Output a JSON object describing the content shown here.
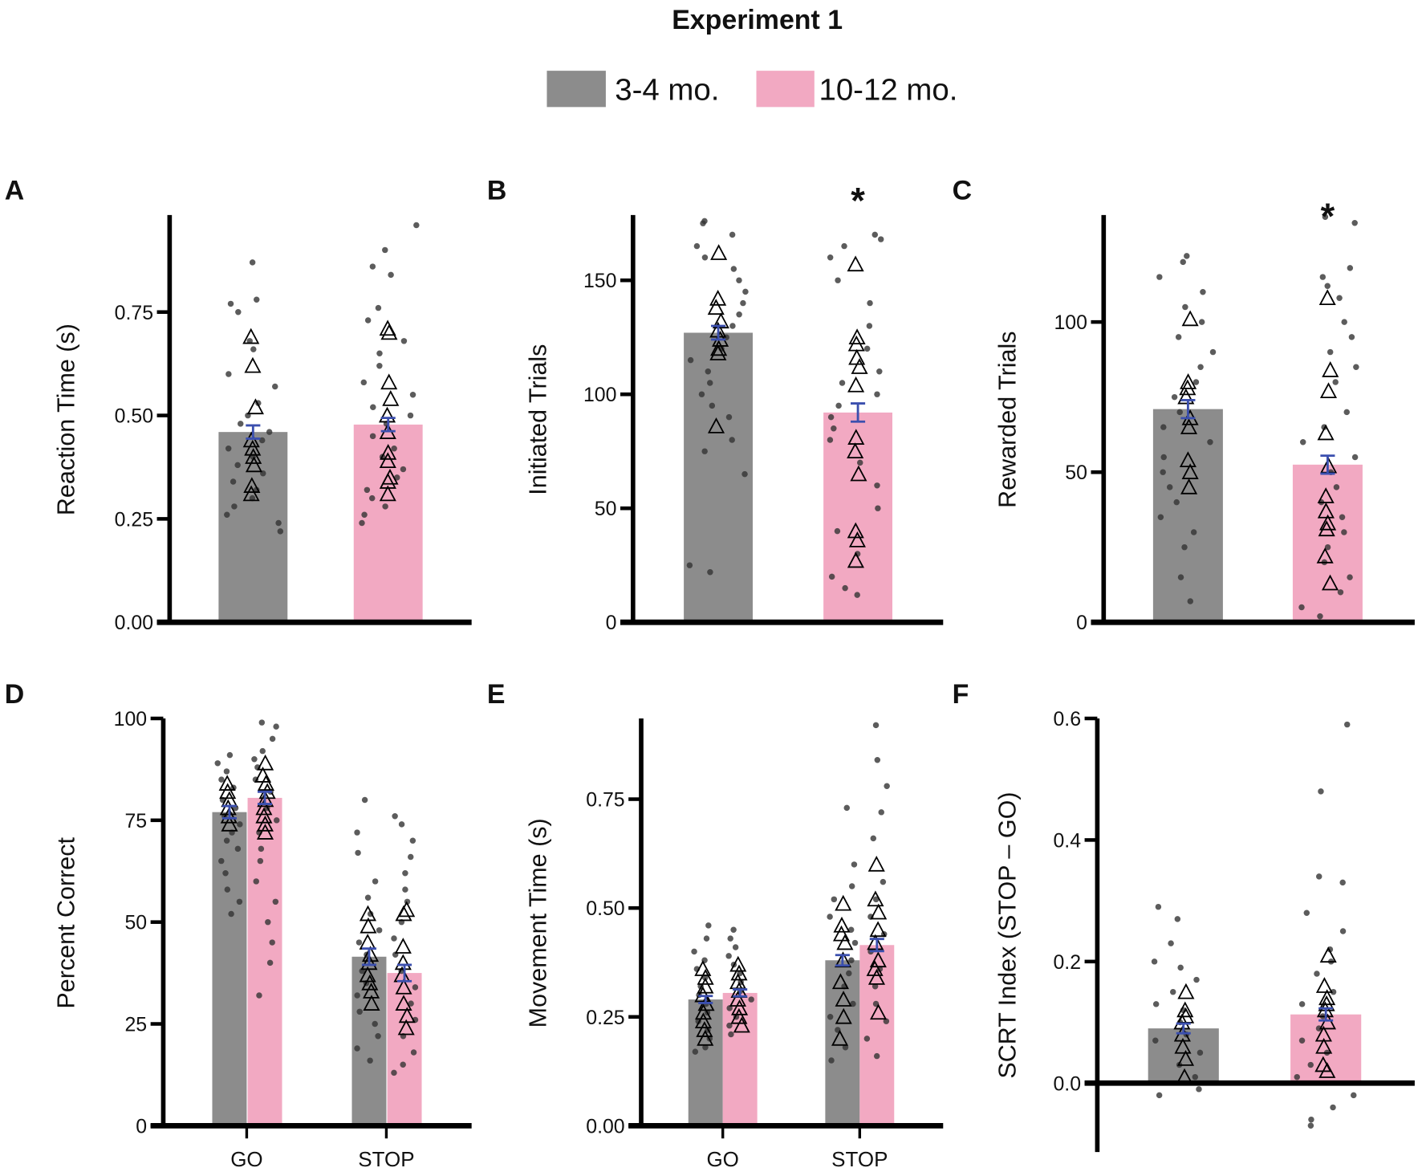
{
  "title": "Experiment 1",
  "legend": [
    {
      "label": "3-4 mo.",
      "color": "#8c8c8c"
    },
    {
      "label": "10-12 mo.",
      "color": "#f2a9c2"
    }
  ],
  "colors": {
    "dot": "#333333",
    "sem": "#3b4fae",
    "axis": "#000000"
  },
  "chart_data": [
    {
      "panel": "A",
      "type": "bar",
      "ylabel": "Reaction Time (s)",
      "ylim": [
        0,
        0.98
      ],
      "yticks": [
        "0.00",
        "0.25",
        "0.50",
        "0.75"
      ],
      "ytick_values": [
        0,
        0.25,
        0.5,
        0.75
      ],
      "categories": [
        ""
      ],
      "significance": [],
      "series": [
        {
          "name": "3-4 mo.",
          "groups": [
            {
              "mean": 0.46,
              "sem": 0.016,
              "points": [
                0.87,
                0.78,
                0.77,
                0.75,
                0.68,
                0.66,
                0.6,
                0.57,
                0.53,
                0.5,
                0.48,
                0.46,
                0.44,
                0.42,
                0.4,
                0.38,
                0.36,
                0.34,
                0.32,
                0.3,
                0.28,
                0.26,
                0.24,
                0.22
              ],
              "subjects": [
                0.69,
                0.62,
                0.52,
                0.44,
                0.42,
                0.4,
                0.38,
                0.33,
                0.31
              ]
            }
          ]
        },
        {
          "name": "10-12 mo.",
          "groups": [
            {
              "mean": 0.478,
              "sem": 0.016,
              "points": [
                0.96,
                0.9,
                0.86,
                0.84,
                0.76,
                0.73,
                0.68,
                0.65,
                0.62,
                0.58,
                0.55,
                0.52,
                0.5,
                0.48,
                0.45,
                0.42,
                0.4,
                0.37,
                0.35,
                0.32,
                0.3,
                0.28,
                0.26,
                0.24
              ],
              "subjects": [
                0.71,
                0.7,
                0.58,
                0.54,
                0.5,
                0.46,
                0.41,
                0.39,
                0.35,
                0.34,
                0.31
              ]
            }
          ]
        }
      ]
    },
    {
      "panel": "B",
      "type": "bar",
      "ylabel": "Initiated Trials",
      "ylim": [
        0,
        180
      ],
      "yticks": [
        "0",
        "50",
        "100",
        "150"
      ],
      "ytick_values": [
        0,
        50,
        100,
        150
      ],
      "categories": [
        ""
      ],
      "significance": [
        "",
        "*"
      ],
      "series": [
        {
          "name": "3-4 mo.",
          "groups": [
            {
              "mean": 127,
              "sem": 3,
              "points": [
                176,
                175,
                170,
                165,
                160,
                155,
                150,
                145,
                140,
                135,
                130,
                125,
                120,
                115,
                110,
                105,
                100,
                95,
                90,
                80,
                75,
                65,
                25,
                22
              ],
              "subjects": [
                162,
                142,
                138,
                132,
                128,
                124,
                120,
                118,
                86
              ]
            }
          ]
        },
        {
          "name": "10-12 mo.",
          "groups": [
            {
              "mean": 92,
              "sem": 4,
              "points": [
                170,
                168,
                165,
                160,
                150,
                140,
                130,
                120,
                110,
                105,
                100,
                95,
                90,
                85,
                80,
                70,
                60,
                50,
                40,
                30,
                20,
                15,
                12
              ],
              "subjects": [
                157,
                125,
                122,
                116,
                112,
                104,
                81,
                75,
                65,
                40,
                36,
                27
              ]
            }
          ]
        }
      ]
    },
    {
      "panel": "C",
      "type": "bar",
      "ylabel": "Rewarded Trials",
      "ylim": [
        0,
        136
      ],
      "yticks": [
        "0",
        "50",
        "100"
      ],
      "ytick_values": [
        0,
        50,
        100
      ],
      "categories": [
        ""
      ],
      "significance": [
        "",
        "*"
      ],
      "series": [
        {
          "name": "3-4 mo.",
          "groups": [
            {
              "mean": 71,
              "sem": 3,
              "points": [
                122,
                120,
                115,
                110,
                105,
                100,
                95,
                90,
                85,
                80,
                75,
                70,
                65,
                60,
                55,
                50,
                45,
                40,
                35,
                30,
                25,
                15,
                7
              ],
              "subjects": [
                101,
                80,
                78,
                75,
                68,
                65,
                54,
                50,
                45
              ]
            }
          ]
        },
        {
          "name": "10-12 mo.",
          "groups": [
            {
              "mean": 52.5,
              "sem": 3,
              "points": [
                135,
                133,
                118,
                115,
                112,
                108,
                100,
                95,
                90,
                85,
                80,
                70,
                65,
                60,
                55,
                50,
                45,
                40,
                35,
                30,
                25,
                20,
                15,
                10,
                5,
                2
              ],
              "subjects": [
                108,
                84,
                77,
                63,
                52,
                42,
                37,
                33,
                31,
                22,
                13
              ]
            }
          ]
        }
      ]
    },
    {
      "panel": "D",
      "type": "bar",
      "ylabel": "Percent Correct",
      "ylim": [
        0,
        100
      ],
      "yticks": [
        "0",
        "25",
        "50",
        "75",
        "100"
      ],
      "ytick_values": [
        0,
        25,
        50,
        75,
        100
      ],
      "categories": [
        "GO",
        "STOP"
      ],
      "significance": [],
      "series": [
        {
          "name": "3-4 mo.",
          "groups": [
            {
              "mean": 77,
              "sem": 1.5,
              "points": [
                91,
                89,
                87,
                85,
                83,
                80,
                78,
                76,
                74,
                72,
                70,
                68,
                65,
                62,
                58,
                55,
                52
              ],
              "subjects": [
                84,
                82,
                80,
                78,
                76,
                74
              ]
            },
            {
              "mean": 41.5,
              "sem": 2,
              "points": [
                80,
                72,
                67,
                60,
                56,
                52,
                48,
                45,
                42,
                38,
                35,
                32,
                28,
                25,
                22,
                19,
                16
              ],
              "subjects": [
                52,
                49,
                45,
                42,
                40,
                37,
                35,
                33,
                30
              ]
            }
          ]
        },
        {
          "name": "10-12 mo.",
          "groups": [
            {
              "mean": 80.5,
              "sem": 1.5,
              "points": [
                99,
                98,
                95,
                92,
                90,
                88,
                85,
                82,
                78,
                75,
                72,
                68,
                65,
                60,
                55,
                50,
                45,
                40,
                32
              ],
              "subjects": [
                89,
                86,
                84,
                82,
                80,
                78,
                76,
                74,
                72
              ]
            },
            {
              "mean": 37.5,
              "sem": 2,
              "points": [
                76,
                74,
                70,
                66,
                62,
                58,
                55,
                50,
                46,
                42,
                38,
                34,
                30,
                26,
                22,
                18,
                15,
                13
              ],
              "subjects": [
                53,
                52,
                44,
                40,
                37,
                34,
                30,
                27,
                24
              ]
            }
          ]
        }
      ]
    },
    {
      "panel": "E",
      "type": "bar",
      "ylabel": "Movement Time (s)",
      "ylim": [
        0,
        0.94
      ],
      "yticks": [
        "0.00",
        "0.25",
        "0.50",
        "0.75"
      ],
      "ytick_values": [
        0,
        0.25,
        0.5,
        0.75
      ],
      "categories": [
        "GO",
        "STOP"
      ],
      "significance": [],
      "series": [
        {
          "name": "3-4 mo.",
          "groups": [
            {
              "mean": 0.29,
              "sem": 0.008,
              "points": [
                0.46,
                0.43,
                0.4,
                0.38,
                0.36,
                0.34,
                0.32,
                0.3,
                0.28,
                0.26,
                0.24,
                0.22,
                0.2,
                0.18,
                0.17
              ],
              "subjects": [
                0.36,
                0.34,
                0.32,
                0.3,
                0.28,
                0.26,
                0.24,
                0.22,
                0.2
              ]
            },
            {
              "mean": 0.38,
              "sem": 0.012,
              "points": [
                0.73,
                0.6,
                0.55,
                0.52,
                0.48,
                0.45,
                0.42,
                0.38,
                0.35,
                0.32,
                0.28,
                0.25,
                0.22,
                0.18,
                0.15
              ],
              "subjects": [
                0.51,
                0.46,
                0.44,
                0.42,
                0.38,
                0.33,
                0.29,
                0.25,
                0.2
              ]
            }
          ]
        },
        {
          "name": "10-12 mo.",
          "groups": [
            {
              "mean": 0.305,
              "sem": 0.008,
              "points": [
                0.45,
                0.43,
                0.41,
                0.39,
                0.37,
                0.35,
                0.33,
                0.31,
                0.29,
                0.27,
                0.25,
                0.23,
                0.21
              ],
              "subjects": [
                0.37,
                0.35,
                0.33,
                0.31,
                0.29,
                0.27,
                0.25,
                0.23
              ]
            },
            {
              "mean": 0.415,
              "sem": 0.014,
              "points": [
                0.92,
                0.84,
                0.78,
                0.72,
                0.66,
                0.56,
                0.52,
                0.48,
                0.44,
                0.4,
                0.36,
                0.32,
                0.28,
                0.24,
                0.2,
                0.16
              ],
              "subjects": [
                0.6,
                0.52,
                0.49,
                0.45,
                0.42,
                0.38,
                0.36,
                0.34,
                0.26
              ]
            }
          ]
        }
      ]
    },
    {
      "panel": "F",
      "type": "bar",
      "ylabel": "SCRT Index (STOP – GO)",
      "ylim": [
        -0.11,
        0.6
      ],
      "yticks": [
        "0.0",
        "0.2",
        "0.4",
        "0.6"
      ],
      "ytick_values": [
        0,
        0.2,
        0.4,
        0.6
      ],
      "categories": [
        ""
      ],
      "significance": [],
      "series": [
        {
          "name": "3-4 mo.",
          "groups": [
            {
              "mean": 0.09,
              "sem": 0.008,
              "points": [
                0.29,
                0.27,
                0.23,
                0.2,
                0.19,
                0.17,
                0.15,
                0.13,
                0.12,
                0.1,
                0.08,
                0.07,
                0.05,
                0.03,
                0.01,
                -0.01,
                -0.02
              ],
              "subjects": [
                0.15,
                0.12,
                0.11,
                0.1,
                0.08,
                0.06,
                0.04,
                0.01
              ]
            }
          ]
        },
        {
          "name": "10-12 mo.",
          "groups": [
            {
              "mean": 0.113,
              "sem": 0.01,
              "points": [
                0.59,
                0.48,
                0.34,
                0.33,
                0.28,
                0.25,
                0.22,
                0.2,
                0.18,
                0.15,
                0.13,
                0.11,
                0.09,
                0.07,
                0.05,
                0.03,
                0.01,
                -0.02,
                -0.04,
                -0.06,
                -0.07
              ],
              "subjects": [
                0.21,
                0.16,
                0.14,
                0.13,
                0.12,
                0.1,
                0.08,
                0.06,
                0.03,
                0.02
              ]
            }
          ]
        }
      ]
    }
  ]
}
